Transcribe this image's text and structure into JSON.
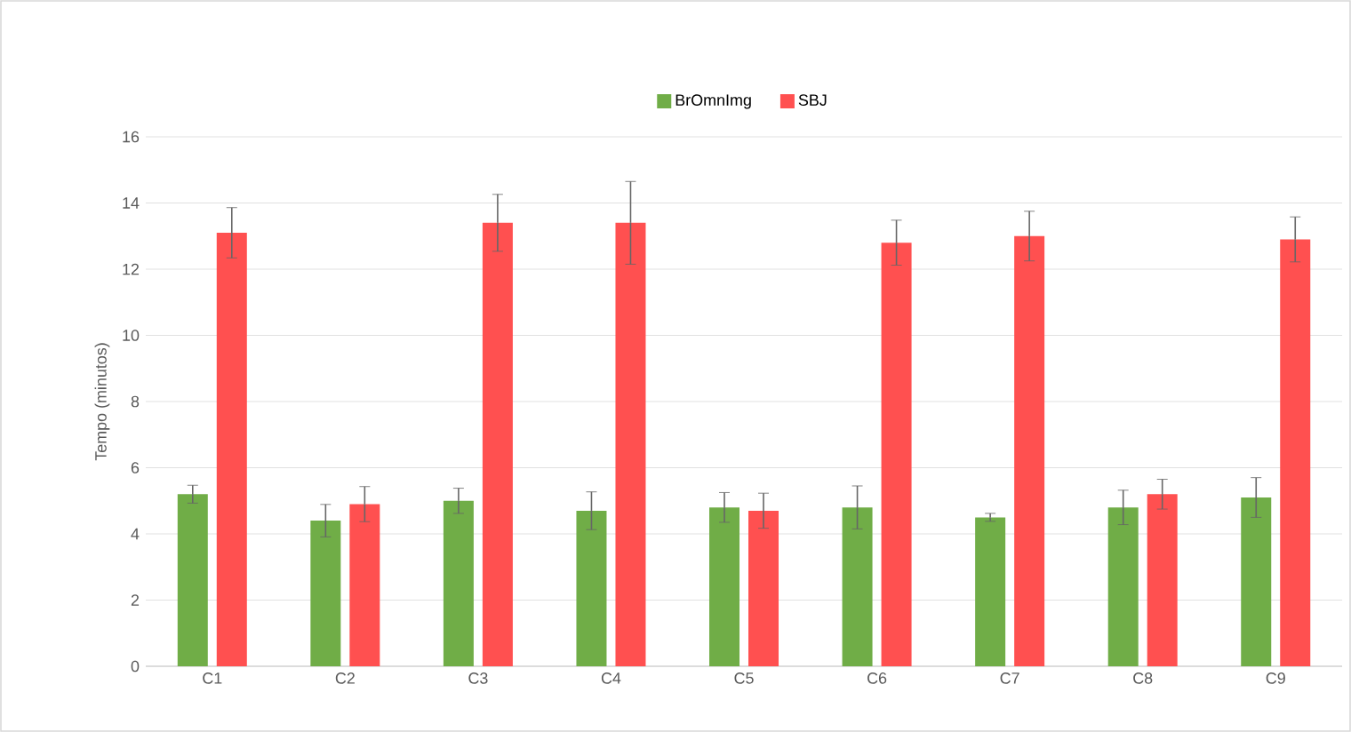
{
  "chart_data": {
    "type": "bar",
    "ylabel": "Tempo (minutos)",
    "categories": [
      "C1",
      "C2",
      "C3",
      "C4",
      "C5",
      "C6",
      "C7",
      "C8",
      "C9"
    ],
    "series": [
      {
        "name": "BrOmnImg",
        "color": "#70ad47",
        "values": [
          5.2,
          4.4,
          5.0,
          4.7,
          4.8,
          4.8,
          4.5,
          4.8,
          5.1
        ],
        "errors": [
          0.27,
          0.49,
          0.38,
          0.57,
          0.45,
          0.65,
          0.12,
          0.52,
          0.6
        ]
      },
      {
        "name": "SBJ",
        "color": "#ff5050",
        "values": [
          13.1,
          4.9,
          13.4,
          13.4,
          4.7,
          12.8,
          13.0,
          5.2,
          12.9
        ],
        "errors": [
          0.76,
          0.53,
          0.86,
          1.25,
          0.53,
          0.68,
          0.75,
          0.45,
          0.68
        ]
      }
    ],
    "ylim": [
      0,
      16
    ],
    "yticks": [
      0,
      2,
      4,
      6,
      8,
      10,
      12,
      14,
      16
    ],
    "grid": "y",
    "legend": "top"
  }
}
